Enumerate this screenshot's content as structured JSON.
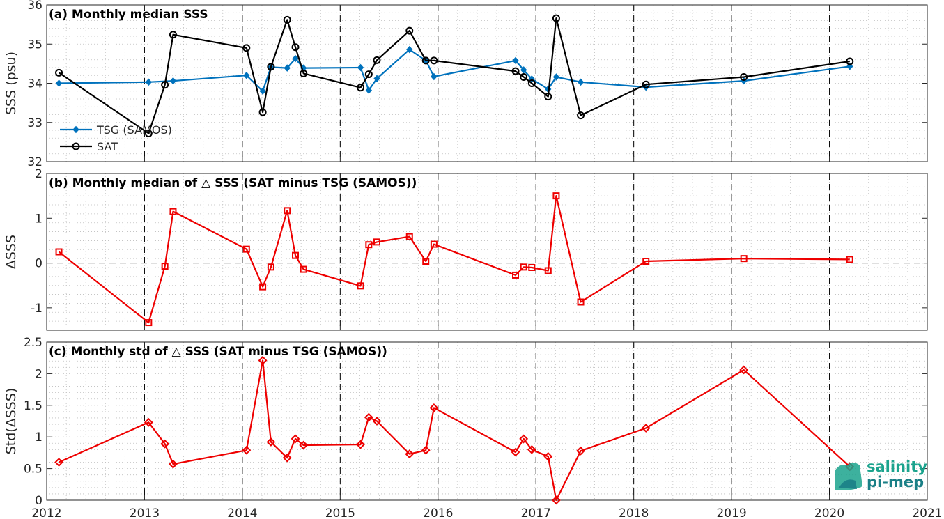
{
  "x_ticks": [
    "2012",
    "2013",
    "2014",
    "2015",
    "2016",
    "2017",
    "2018",
    "2019",
    "2020",
    "2021"
  ],
  "logo": {
    "line1": "salinity",
    "line2": "pi-mep",
    "colors": [
      "#1ba38d",
      "#1a7f86"
    ]
  },
  "colors": {
    "tsg": "#0072bd",
    "sat": "#000000",
    "delta": "#ee0000",
    "axes": "#262626",
    "grid": "#bdbdbd"
  },
  "chart_data": [
    {
      "type": "line",
      "title": "(a) Monthly median SSS",
      "ylabel": "SSS (psu)",
      "xlim": [
        2012,
        2021
      ],
      "ylim": [
        32,
        36
      ],
      "yticks": [
        "32",
        "33",
        "34",
        "35",
        "36"
      ],
      "grid": "dotted",
      "legend": "bottom-left",
      "series": [
        {
          "name": "TSG (SAMOS)",
          "marker": "diamond",
          "x": [
            2012.125,
            2013.042,
            2013.292,
            2014.042,
            2014.208,
            2014.292,
            2014.458,
            2014.542,
            2014.625,
            2015.208,
            2015.292,
            2015.375,
            2015.708,
            2015.875,
            2015.958,
            2016.792,
            2016.875,
            2016.958,
            2017.125,
            2017.208,
            2017.458,
            2018.125,
            2019.125,
            2020.208
          ],
          "y": [
            34.0,
            34.03,
            34.06,
            34.2,
            33.8,
            34.41,
            34.39,
            34.63,
            34.39,
            34.4,
            33.82,
            34.12,
            34.86,
            34.58,
            34.17,
            34.58,
            34.34,
            34.11,
            33.85,
            34.16,
            34.03,
            33.9,
            34.06,
            34.43
          ]
        },
        {
          "name": "SAT",
          "marker": "circle",
          "x": [
            2012.125,
            2013.042,
            2013.208,
            2013.292,
            2014.042,
            2014.208,
            2014.292,
            2014.458,
            2014.542,
            2014.625,
            2015.208,
            2015.292,
            2015.375,
            2015.708,
            2015.875,
            2015.958,
            2016.792,
            2016.875,
            2016.958,
            2017.125,
            2017.208,
            2017.458,
            2018.125,
            2019.125,
            2020.208
          ],
          "y": [
            34.27,
            32.72,
            33.96,
            35.24,
            34.9,
            33.26,
            34.42,
            35.62,
            34.92,
            34.25,
            33.89,
            34.23,
            34.59,
            35.34,
            34.58,
            34.58,
            34.31,
            34.16,
            34.0,
            33.66,
            35.66,
            33.18,
            33.97,
            34.16,
            34.56
          ]
        }
      ]
    },
    {
      "type": "line",
      "title": "(b) Monthly median of △ SSS (SAT minus TSG (SAMOS))",
      "ylabel": "ΔSSS",
      "xlim": [
        2012,
        2021
      ],
      "ylim": [
        -1.5,
        2
      ],
      "yticks": [
        "-1",
        "0",
        "1",
        "2"
      ],
      "grid": "dotted",
      "reference_line": 0,
      "series": [
        {
          "marker": "square",
          "x": [
            2012.125,
            2013.042,
            2013.208,
            2013.292,
            2014.042,
            2014.208,
            2014.292,
            2014.458,
            2014.542,
            2014.625,
            2015.208,
            2015.292,
            2015.375,
            2015.708,
            2015.875,
            2015.958,
            2016.792,
            2016.875,
            2016.958,
            2017.125,
            2017.208,
            2017.458,
            2018.125,
            2019.125,
            2020.208
          ],
          "y": [
            0.25,
            -1.33,
            -0.07,
            1.15,
            0.31,
            -0.53,
            -0.09,
            1.17,
            0.17,
            -0.14,
            -0.51,
            0.41,
            0.47,
            0.59,
            0.04,
            0.42,
            -0.27,
            -0.09,
            -0.1,
            -0.17,
            1.5,
            -0.87,
            0.04,
            0.1,
            0.08
          ]
        }
      ]
    },
    {
      "type": "line",
      "title": "(c) Monthly std of △ SSS (SAT minus TSG (SAMOS))",
      "ylabel": "Std(ΔSSS)",
      "xlim": [
        2012,
        2021
      ],
      "ylim": [
        0,
        2.5
      ],
      "yticks": [
        "0",
        "0.5",
        "1",
        "1.5",
        "2",
        "2.5"
      ],
      "grid": "dotted",
      "series": [
        {
          "marker": "diamond",
          "x": [
            2012.125,
            2013.042,
            2013.208,
            2013.292,
            2014.042,
            2014.208,
            2014.292,
            2014.458,
            2014.542,
            2014.625,
            2015.208,
            2015.292,
            2015.375,
            2015.708,
            2015.875,
            2015.958,
            2016.792,
            2016.875,
            2016.958,
            2017.125,
            2017.208,
            2017.458,
            2018.125,
            2019.125,
            2020.208
          ],
          "y": [
            0.6,
            1.23,
            0.89,
            0.57,
            0.79,
            2.21,
            0.92,
            0.67,
            0.97,
            0.87,
            0.88,
            1.31,
            1.25,
            0.73,
            0.79,
            1.46,
            0.76,
            0.97,
            0.8,
            0.69,
            0.0,
            0.78,
            1.14,
            2.06,
            0.53
          ]
        }
      ]
    }
  ]
}
